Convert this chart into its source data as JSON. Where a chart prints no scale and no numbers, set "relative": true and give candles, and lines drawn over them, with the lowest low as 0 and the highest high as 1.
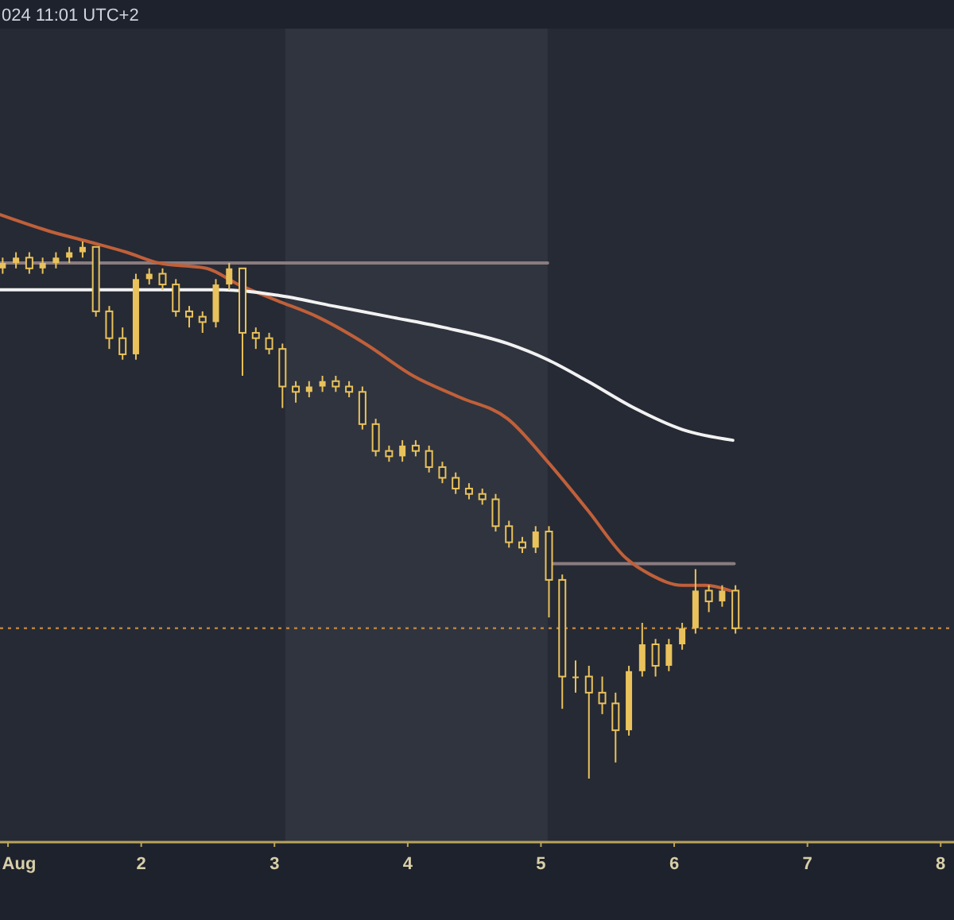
{
  "chart_data": {
    "type": "candlestick",
    "relative": true,
    "annotations": [
      "024 11:01 UTC+2"
    ],
    "xlim": [
      0.94,
      8.1
    ],
    "xticks": [
      {
        "value": 1,
        "label": "Aug"
      },
      2,
      3,
      4,
      5,
      6,
      7,
      8
    ],
    "tick_labels": "x",
    "bands": [
      {
        "axis": "x",
        "from": 3.08,
        "to": 5.05,
        "color": "#30343f"
      }
    ],
    "ref_lines": [
      {
        "axis": "y",
        "value": 0.28,
        "color": "#b8823e",
        "line_style": "dotted"
      }
    ],
    "series": [
      {
        "type": "line",
        "color": "#8a7c80",
        "x": [
          0.94,
          5.05
        ],
        "values": [
          0.96,
          0.96
        ]
      },
      {
        "type": "line",
        "color": "#8a7c80",
        "x": [
          5.08,
          6.45
        ],
        "values": [
          0.4,
          0.4
        ]
      },
      {
        "type": "line",
        "color": "#c0603a",
        "x": [
          0.94,
          1.3,
          1.6,
          1.89,
          2.13,
          2.49,
          2.73,
          3.02,
          3.32,
          3.68,
          4.04,
          4.39,
          4.75,
          5.05,
          5.35,
          5.64,
          5.82,
          6.06,
          6.24,
          6.42
        ],
        "values": [
          1.05,
          1.02,
          1.0,
          0.98,
          0.96,
          0.95,
          0.92,
          0.89,
          0.86,
          0.81,
          0.75,
          0.71,
          0.67,
          0.59,
          0.5,
          0.41,
          0.38,
          0.36,
          0.36,
          0.35
        ]
      },
      {
        "type": "line",
        "color": "#f2f2f2",
        "x": [
          0.94,
          1.65,
          2.61,
          3.02,
          3.44,
          3.86,
          4.27,
          4.75,
          5.05,
          5.35,
          5.7,
          6.06,
          6.44
        ],
        "values": [
          0.91,
          0.91,
          0.91,
          0.9,
          0.88,
          0.86,
          0.84,
          0.81,
          0.78,
          0.74,
          0.69,
          0.65,
          0.63
        ]
      },
      {
        "color": "#e9c25c",
        "x": [
          0.96,
          1.06,
          1.16,
          1.26,
          1.36,
          1.46,
          1.56,
          1.66,
          1.76,
          1.86,
          1.96,
          2.06,
          2.16,
          2.26,
          2.36,
          2.46,
          2.56,
          2.66,
          2.76,
          2.86,
          2.96,
          3.06,
          3.16,
          3.26,
          3.36,
          3.46,
          3.56,
          3.66,
          3.76,
          3.86,
          3.96,
          4.06,
          4.16,
          4.26,
          4.36,
          4.46,
          4.56,
          4.66,
          4.76,
          4.86,
          4.96,
          5.06,
          5.16,
          5.26,
          5.36,
          5.46,
          5.56,
          5.66,
          5.76,
          5.86,
          5.96,
          6.06,
          6.16,
          6.26,
          6.36,
          6.46
        ],
        "ohlc": [
          [
            0.95,
            0.97,
            0.94,
            0.96
          ],
          [
            0.96,
            0.98,
            0.95,
            0.97
          ],
          [
            0.97,
            0.98,
            0.94,
            0.95
          ],
          [
            0.95,
            0.97,
            0.94,
            0.96
          ],
          [
            0.96,
            0.98,
            0.95,
            0.97
          ],
          [
            0.97,
            0.99,
            0.96,
            0.98
          ],
          [
            0.98,
            1.0,
            0.97,
            0.99
          ],
          [
            0.99,
            0.99,
            0.86,
            0.87
          ],
          [
            0.87,
            0.88,
            0.8,
            0.82
          ],
          [
            0.82,
            0.84,
            0.78,
            0.79
          ],
          [
            0.79,
            0.94,
            0.78,
            0.93
          ],
          [
            0.93,
            0.95,
            0.92,
            0.94
          ],
          [
            0.94,
            0.95,
            0.91,
            0.92
          ],
          [
            0.92,
            0.93,
            0.86,
            0.87
          ],
          [
            0.87,
            0.88,
            0.84,
            0.86
          ],
          [
            0.86,
            0.87,
            0.83,
            0.85
          ],
          [
            0.85,
            0.93,
            0.84,
            0.92
          ],
          [
            0.92,
            0.96,
            0.91,
            0.95
          ],
          [
            0.95,
            0.95,
            0.75,
            0.83
          ],
          [
            0.83,
            0.84,
            0.8,
            0.82
          ],
          [
            0.82,
            0.83,
            0.79,
            0.8
          ],
          [
            0.8,
            0.81,
            0.69,
            0.73
          ],
          [
            0.73,
            0.74,
            0.7,
            0.72
          ],
          [
            0.72,
            0.74,
            0.71,
            0.73
          ],
          [
            0.73,
            0.75,
            0.72,
            0.74
          ],
          [
            0.74,
            0.75,
            0.72,
            0.73
          ],
          [
            0.73,
            0.74,
            0.71,
            0.72
          ],
          [
            0.72,
            0.73,
            0.65,
            0.66
          ],
          [
            0.66,
            0.67,
            0.6,
            0.61
          ],
          [
            0.61,
            0.62,
            0.59,
            0.6
          ],
          [
            0.6,
            0.63,
            0.59,
            0.62
          ],
          [
            0.62,
            0.63,
            0.6,
            0.61
          ],
          [
            0.61,
            0.62,
            0.57,
            0.58
          ],
          [
            0.58,
            0.59,
            0.55,
            0.56
          ],
          [
            0.56,
            0.57,
            0.53,
            0.54
          ],
          [
            0.54,
            0.55,
            0.52,
            0.53
          ],
          [
            0.53,
            0.54,
            0.51,
            0.52
          ],
          [
            0.52,
            0.53,
            0.46,
            0.47
          ],
          [
            0.47,
            0.48,
            0.43,
            0.44
          ],
          [
            0.44,
            0.45,
            0.42,
            0.43
          ],
          [
            0.43,
            0.47,
            0.42,
            0.46
          ],
          [
            0.46,
            0.47,
            0.3,
            0.37
          ],
          [
            0.37,
            0.38,
            0.13,
            0.19
          ],
          [
            0.19,
            0.22,
            0.16,
            0.19
          ],
          [
            0.19,
            0.21,
            0.0,
            0.16
          ],
          [
            0.16,
            0.19,
            0.12,
            0.14
          ],
          [
            0.14,
            0.16,
            0.03,
            0.09
          ],
          [
            0.09,
            0.21,
            0.08,
            0.2
          ],
          [
            0.2,
            0.29,
            0.19,
            0.25
          ],
          [
            0.25,
            0.26,
            0.19,
            0.21
          ],
          [
            0.21,
            0.26,
            0.2,
            0.25
          ],
          [
            0.25,
            0.29,
            0.24,
            0.28
          ],
          [
            0.28,
            0.39,
            0.27,
            0.35
          ],
          [
            0.35,
            0.36,
            0.31,
            0.33
          ],
          [
            0.33,
            0.36,
            0.32,
            0.35
          ],
          [
            0.35,
            0.36,
            0.27,
            0.28
          ]
        ]
      }
    ]
  }
}
